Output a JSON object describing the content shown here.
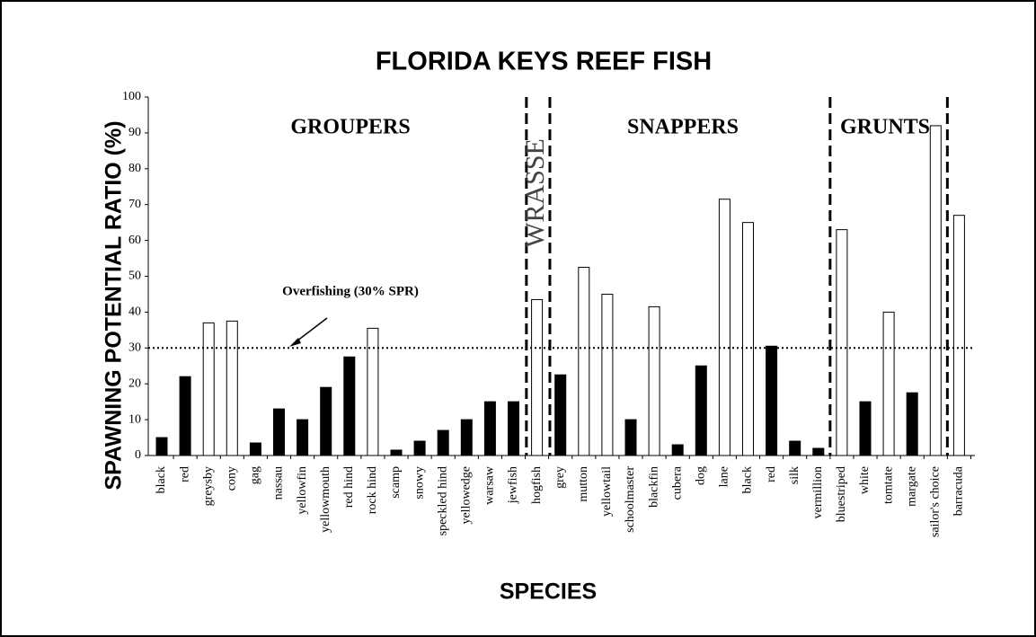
{
  "chart_data": {
    "type": "bar",
    "title": "FLORIDA KEYS REEF FISH",
    "xlabel": "SPECIES",
    "ylabel": "SPAWNING POTENTIAL RATIO (%)",
    "categories": [
      "black",
      "red",
      "greysby",
      "cony",
      "gag",
      "nassau",
      "yellowfin",
      "yellowmouth",
      "red hind",
      "rock hind",
      "scamp",
      "snowy",
      "speckled hind",
      "yellowedge",
      "warsaw",
      "jewfish",
      "hogfish",
      "grey",
      "mutton",
      "yellowtail",
      "schoolmaster",
      "blackfin",
      "cubera",
      "dog",
      "lane",
      "black",
      "red",
      "silk",
      "vermillion",
      "bluestriped",
      "white",
      "tomtate",
      "margate",
      "sailor's choice",
      "barracuda"
    ],
    "values": [
      5,
      22,
      37,
      37.5,
      3.5,
      13,
      10,
      19,
      27.5,
      35.5,
      1.5,
      4,
      7,
      10,
      15,
      15,
      43.5,
      22.5,
      52.5,
      45,
      10,
      41.5,
      3,
      25,
      71.5,
      65,
      30.5,
      4,
      2,
      63,
      15,
      40,
      17.5,
      92,
      67
    ],
    "colors": [
      "#000000",
      "#000000",
      "#ffffff",
      "#ffffff",
      "#000000",
      "#000000",
      "#000000",
      "#000000",
      "#000000",
      "#ffffff",
      "#000000",
      "#000000",
      "#000000",
      "#000000",
      "#000000",
      "#000000",
      "#ffffff",
      "#000000",
      "#ffffff",
      "#ffffff",
      "#000000",
      "#ffffff",
      "#000000",
      "#000000",
      "#ffffff",
      "#ffffff",
      "#000000",
      "#000000",
      "#000000",
      "#ffffff",
      "#000000",
      "#ffffff",
      "#000000",
      "#ffffff",
      "#ffffff"
    ],
    "ylim": [
      0,
      100
    ],
    "yticks": [
      0,
      10,
      20,
      30,
      40,
      50,
      60,
      70,
      80,
      90,
      100
    ],
    "grid": false,
    "reference_line": {
      "value": 30,
      "label": "Overfishing (30% SPR)"
    },
    "groups": [
      "GROUPERS",
      "WRASSE",
      "SNAPPERS",
      "GRUNTS"
    ]
  }
}
